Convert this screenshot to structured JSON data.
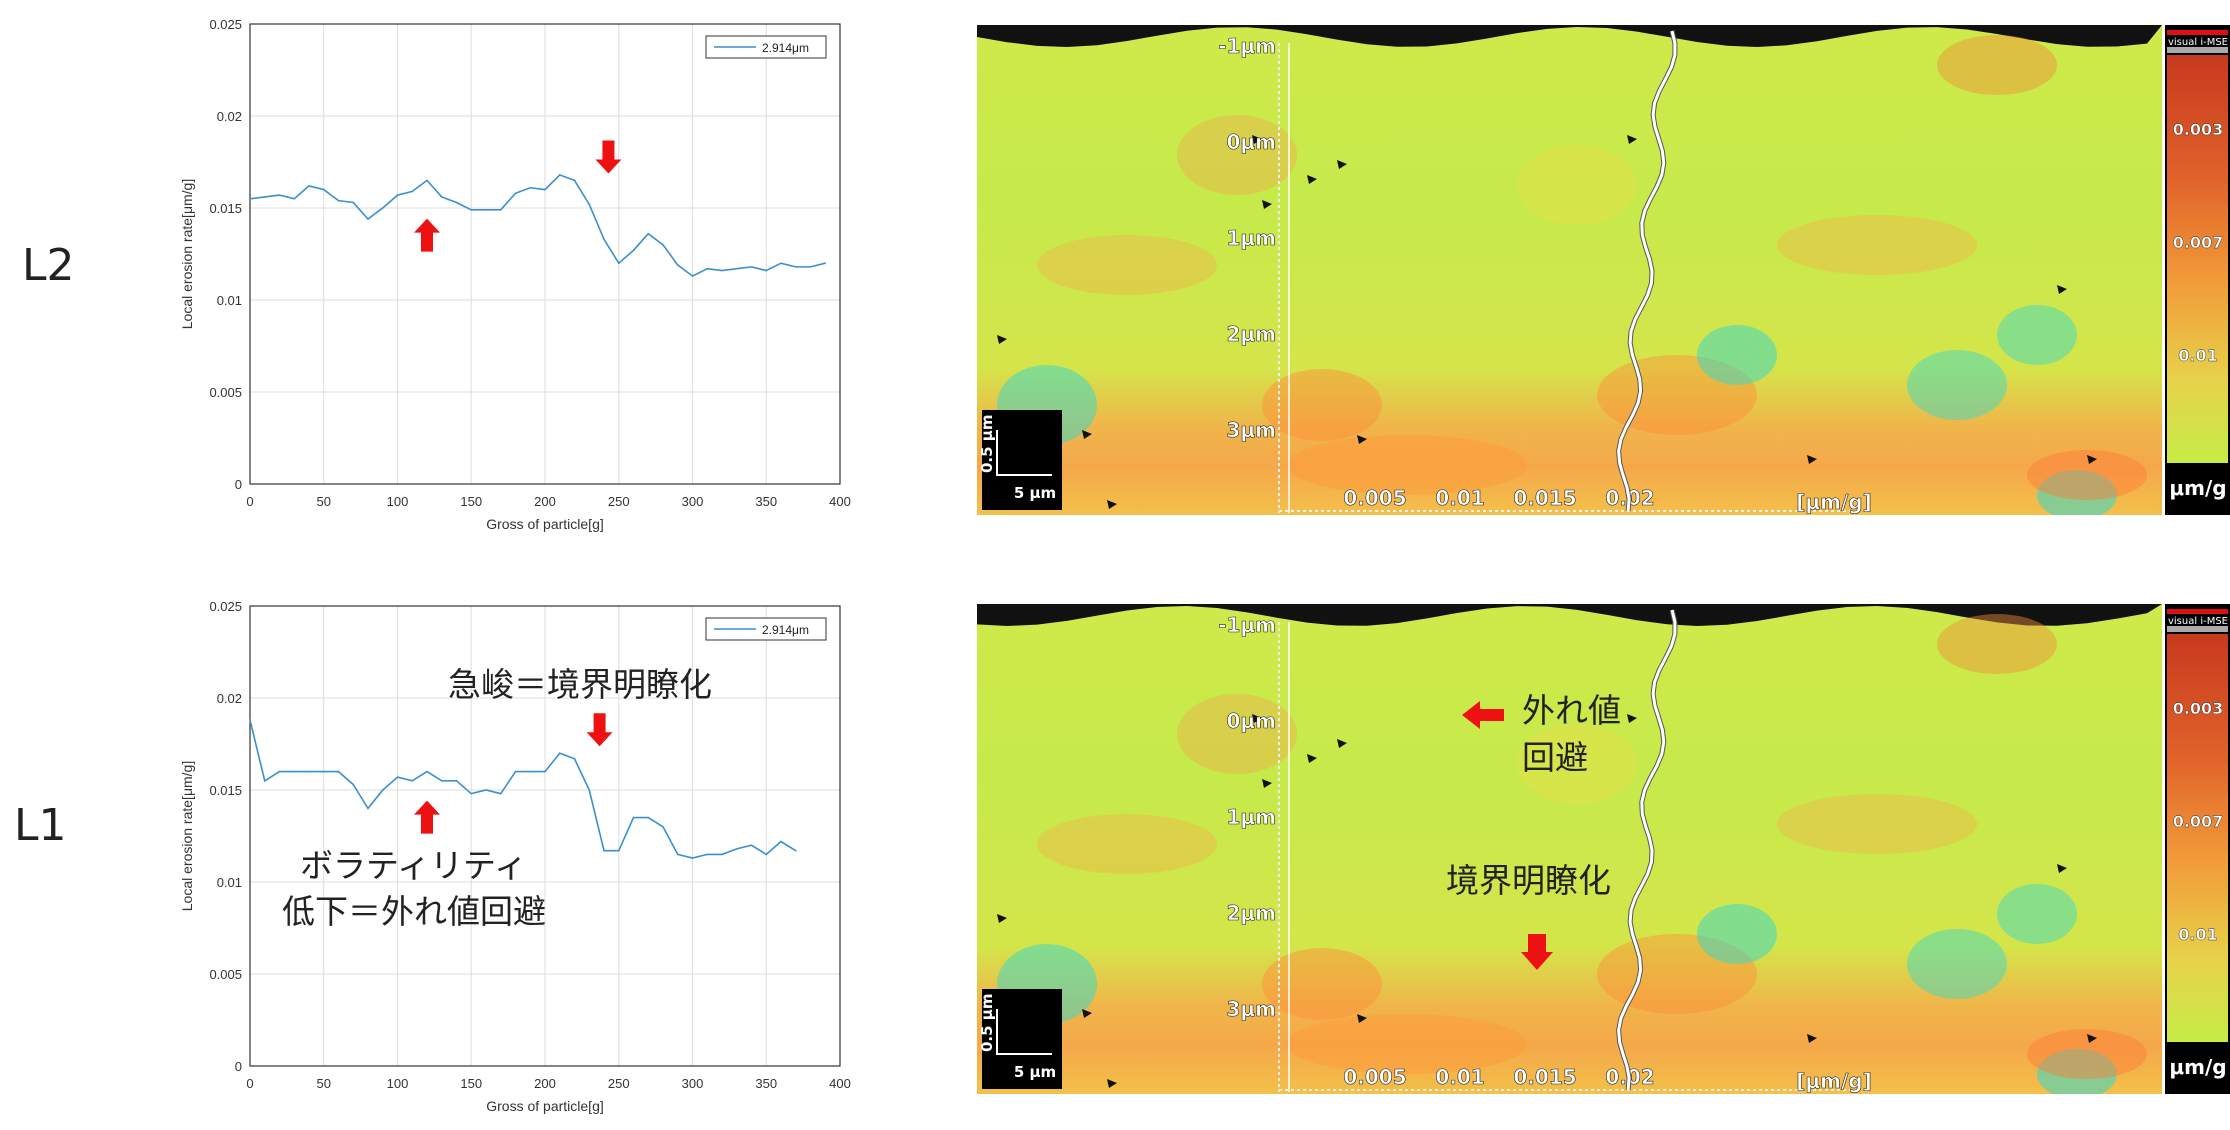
{
  "rows": [
    {
      "label": "L2"
    },
    {
      "label": "L1"
    }
  ],
  "annotations": {
    "chart_upper": "急峻＝境界明瞭化",
    "chart_lower_line1": "ボラティリティ",
    "chart_lower_line2": "低下＝外れ値回避",
    "map_outlier_line1": "外れ値",
    "map_outlier_line2": "回避",
    "map_boundary": "境界明瞭化"
  },
  "chart_data": [
    {
      "type": "line",
      "panel": "L2",
      "xlabel": "Gross of particle[g]",
      "ylabel": "Local erosion rate[μm/g]",
      "xlim": [
        0,
        400
      ],
      "ylim": [
        0,
        0.025
      ],
      "xticks": [
        "0",
        "50",
        "100",
        "150",
        "200",
        "250",
        "300",
        "350",
        "400"
      ],
      "yticks": [
        "0",
        "0.005",
        "0.01",
        "0.015",
        "0.02",
        "0.025"
      ],
      "grid": true,
      "legend_position": "top-right",
      "series": [
        {
          "name": "2.914μm",
          "x": [
            0,
            10,
            20,
            30,
            40,
            50,
            60,
            70,
            80,
            90,
            100,
            110,
            120,
            130,
            140,
            150,
            160,
            170,
            180,
            190,
            200,
            210,
            220,
            230,
            240,
            250,
            260,
            270,
            280,
            290,
            300,
            310,
            320,
            330,
            340,
            350,
            360,
            370,
            380,
            390
          ],
          "y": [
            0.0155,
            0.0156,
            0.0157,
            0.0155,
            0.0162,
            0.016,
            0.0154,
            0.0153,
            0.0144,
            0.015,
            0.0157,
            0.0159,
            0.0165,
            0.0156,
            0.0153,
            0.0149,
            0.0149,
            0.0149,
            0.0158,
            0.0161,
            0.016,
            0.0168,
            0.0165,
            0.0152,
            0.0133,
            0.012,
            0.0127,
            0.0136,
            0.013,
            0.0119,
            0.0113,
            0.0117,
            0.0116,
            0.0117,
            0.0118,
            0.0116,
            0.012,
            0.0118,
            0.0118,
            0.012
          ]
        }
      ],
      "arrows": [
        {
          "direction": "up",
          "x": 120,
          "y": 0.0135
        },
        {
          "direction": "down",
          "x": 243,
          "y": 0.0178
        }
      ]
    },
    {
      "type": "line",
      "panel": "L1",
      "xlabel": "Gross of particle[g]",
      "ylabel": "Local erosion rate[μm/g]",
      "xlim": [
        0,
        400
      ],
      "ylim": [
        0,
        0.025
      ],
      "xticks": [
        "0",
        "50",
        "100",
        "150",
        "200",
        "250",
        "300",
        "350",
        "400"
      ],
      "yticks": [
        "0",
        "0.005",
        "0.01",
        "0.015",
        "0.02",
        "0.025"
      ],
      "grid": true,
      "legend_position": "top-right",
      "series": [
        {
          "name": "2.914μm",
          "x": [
            0,
            10,
            20,
            30,
            40,
            50,
            60,
            70,
            80,
            90,
            100,
            110,
            120,
            130,
            140,
            150,
            160,
            170,
            180,
            190,
            200,
            210,
            220,
            230,
            240,
            250,
            260,
            270,
            280,
            290,
            300,
            310,
            320,
            330,
            340,
            350,
            360,
            370
          ],
          "y": [
            0.0188,
            0.0155,
            0.016,
            0.016,
            0.016,
            0.016,
            0.016,
            0.0153,
            0.014,
            0.015,
            0.0157,
            0.0155,
            0.016,
            0.0155,
            0.0155,
            0.0148,
            0.015,
            0.0148,
            0.016,
            0.016,
            0.016,
            0.017,
            0.0167,
            0.015,
            0.0117,
            0.0117,
            0.0135,
            0.0135,
            0.013,
            0.0115,
            0.0113,
            0.0115,
            0.0115,
            0.0118,
            0.012,
            0.0115,
            0.0122,
            0.0117
          ]
        }
      ],
      "arrows": [
        {
          "direction": "up",
          "x": 120,
          "y": 0.0135
        },
        {
          "direction": "down",
          "x": 237,
          "y": 0.0183
        }
      ]
    }
  ],
  "maps": [
    {
      "row": "L2",
      "depth_labels": [
        "-1μm",
        "0μm",
        "1μm",
        "2μm",
        "3μm"
      ],
      "rate_ticks": [
        "0.005",
        "0.01",
        "0.015",
        "0.02"
      ],
      "rate_unit": "[μm/g]",
      "scalebar_v": "0.5 μm",
      "scalebar_h": "5 μm",
      "colorbar_title": "visual i-MSE",
      "colorbar_ticks": [
        "0.003",
        "0.007",
        "0.01"
      ],
      "colorbar_unit": "μm/g"
    },
    {
      "row": "L1",
      "depth_labels": [
        "-1μm",
        "0μm",
        "1μm",
        "2μm",
        "3μm"
      ],
      "rate_ticks": [
        "0.005",
        "0.01",
        "0.015",
        "0.02"
      ],
      "rate_unit": "[μm/g]",
      "scalebar_v": "0.5 μm",
      "scalebar_h": "5 μm",
      "colorbar_title": "visual i-MSE",
      "colorbar_ticks": [
        "0.003",
        "0.007",
        "0.01"
      ],
      "colorbar_unit": "μm/g"
    }
  ],
  "colors": {
    "line": "#3a8fd0",
    "arrow": "#ee1111",
    "map_green": "#c8ec46",
    "map_orange": "#f39a3a",
    "map_cyan": "#3fd7c4",
    "grid": "#dddddd"
  }
}
